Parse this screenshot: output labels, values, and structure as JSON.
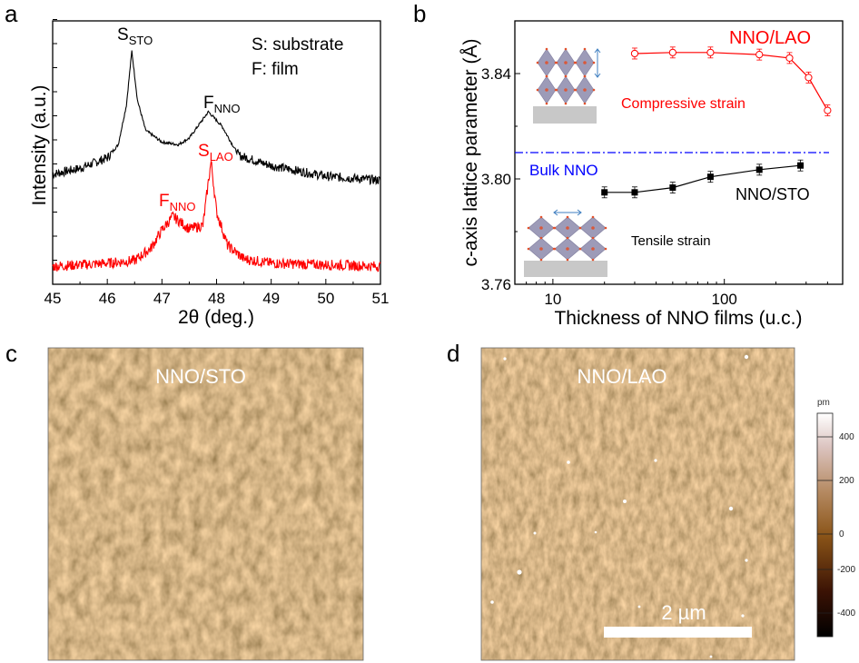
{
  "panel_labels": {
    "a": "a",
    "b": "b",
    "c": "c",
    "d": "d"
  },
  "chart_data": [
    {
      "type": "line",
      "panel": "a",
      "xlabel": "2θ (deg.)",
      "ylabel": "Intensity (a.u.)",
      "xlim": [
        45,
        51
      ],
      "xticks": [
        "45",
        "46",
        "47",
        "48",
        "49",
        "50",
        "51"
      ],
      "legend_text": [
        "S: substrate",
        "F: film"
      ],
      "annotations": {
        "s_sto": {
          "main": "S",
          "sub": "STO"
        },
        "f_nno_black": {
          "main": "F",
          "sub": "NNO"
        },
        "s_lao": {
          "main": "S",
          "sub": "LAO"
        },
        "f_nno_red": {
          "main": "F",
          "sub": "NNO"
        }
      },
      "series": [
        {
          "color": "#000000",
          "x": [
            45,
            45.5,
            46,
            46.2,
            46.35,
            46.45,
            46.55,
            46.7,
            47.0,
            47.3,
            47.5,
            47.85,
            48.1,
            48.4,
            49,
            50,
            51
          ],
          "y": [
            0.418,
            0.44,
            0.48,
            0.53,
            0.68,
            0.886,
            0.7,
            0.585,
            0.54,
            0.53,
            0.555,
            0.655,
            0.6,
            0.49,
            0.45,
            0.41,
            0.395
          ]
        },
        {
          "color": "#ff0000",
          "x": [
            45,
            46,
            46.5,
            46.8,
            47.0,
            47.2,
            47.5,
            47.75,
            47.85,
            47.9,
            48.0,
            48.2,
            48.5,
            49,
            51
          ],
          "y": [
            0.068,
            0.08,
            0.09,
            0.137,
            0.206,
            0.258,
            0.21,
            0.223,
            0.39,
            0.466,
            0.275,
            0.148,
            0.096,
            0.08,
            0.068
          ]
        }
      ]
    },
    {
      "type": "line",
      "panel": "b",
      "xlabel": "Thickness of NNO films (u.c.)",
      "ylabel": "c-axis lattice parameter (Å)",
      "xscale": "log",
      "xlim": [
        6,
        490
      ],
      "ylim": [
        3.76,
        3.86
      ],
      "xticks": [
        "10",
        "100"
      ],
      "yticks": [
        "3.76",
        "3.80",
        "3.84"
      ],
      "bulk_line": {
        "value": 3.81,
        "label": "Bulk NNO",
        "color": "#0000ff",
        "style": "dash-dot"
      },
      "series": [
        {
          "name": "NNO/LAO",
          "color": "#ff0000",
          "marker": "open-circle",
          "x": [
            30,
            50,
            83,
            160,
            240,
            310,
            400
          ],
          "y": [
            3.8476,
            3.848,
            3.848,
            3.8472,
            3.8459,
            3.8385,
            3.826
          ]
        },
        {
          "name": "NNO/STO",
          "color": "#000000",
          "marker": "filled-square",
          "x": [
            20,
            30,
            50,
            83,
            160,
            278
          ],
          "y": [
            3.7949,
            3.7949,
            3.7967,
            3.8008,
            3.8035,
            3.8051
          ]
        }
      ],
      "annotations": {
        "compressive": "Compressive strain",
        "tensile": "Tensile strain"
      }
    }
  ],
  "afm": {
    "c_label": "NNO/STO",
    "d_label": "NNO/LAO",
    "scale_bar": "2 µm",
    "colorbar": {
      "unit": "pm",
      "ticks": [
        "400",
        "200",
        "0",
        "-200",
        "-400"
      ]
    }
  }
}
